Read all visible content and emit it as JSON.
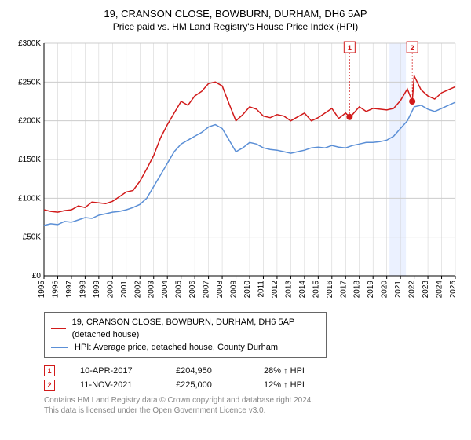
{
  "title": "19, CRANSON CLOSE, BOWBURN, DURHAM, DH6 5AP",
  "subtitle": "Price paid vs. HM Land Registry's House Price Index (HPI)",
  "chart": {
    "type": "line",
    "background_color": "#ffffff",
    "grid_color": "#cccccc",
    "axis_color": "#000000",
    "title_fontsize": 13,
    "subtitle_fontsize": 12,
    "tick_fontsize": 10,
    "y": {
      "min": 0,
      "max": 300000,
      "ticks": [
        0,
        50000,
        100000,
        150000,
        200000,
        250000,
        300000
      ],
      "tick_labels": [
        "£0",
        "£50K",
        "£100K",
        "£150K",
        "£200K",
        "£250K",
        "£300K"
      ]
    },
    "x": {
      "min": 1995,
      "max": 2025,
      "ticks": [
        1995,
        1996,
        1997,
        1998,
        1999,
        2000,
        2001,
        2002,
        2003,
        2004,
        2005,
        2006,
        2007,
        2008,
        2009,
        2010,
        2011,
        2012,
        2013,
        2014,
        2015,
        2016,
        2017,
        2018,
        2019,
        2020,
        2021,
        2022,
        2023,
        2024,
        2025
      ]
    },
    "highlight_band": {
      "from_year": 2020.2,
      "to_year": 2021.4,
      "fill": "#e6eeff",
      "opacity": 0.8
    },
    "series": [
      {
        "name": "property",
        "label": "19, CRANSON CLOSE, BOWBURN, DURHAM, DH6 5AP (detached house)",
        "color": "#d11a1a",
        "line_width": 1.5,
        "points": [
          [
            1995,
            85000
          ],
          [
            1995.5,
            83000
          ],
          [
            1996,
            82000
          ],
          [
            1996.5,
            84000
          ],
          [
            1997,
            85000
          ],
          [
            1997.5,
            90000
          ],
          [
            1998,
            88000
          ],
          [
            1998.5,
            95000
          ],
          [
            1999,
            94000
          ],
          [
            1999.5,
            93000
          ],
          [
            2000,
            96000
          ],
          [
            2000.5,
            102000
          ],
          [
            2001,
            108000
          ],
          [
            2001.5,
            110000
          ],
          [
            2002,
            122000
          ],
          [
            2002.5,
            138000
          ],
          [
            2003,
            155000
          ],
          [
            2003.5,
            178000
          ],
          [
            2004,
            195000
          ],
          [
            2004.5,
            210000
          ],
          [
            2005,
            225000
          ],
          [
            2005.5,
            220000
          ],
          [
            2006,
            232000
          ],
          [
            2006.5,
            238000
          ],
          [
            2007,
            248000
          ],
          [
            2007.5,
            250000
          ],
          [
            2008,
            245000
          ],
          [
            2008.5,
            222000
          ],
          [
            2009,
            200000
          ],
          [
            2009.5,
            208000
          ],
          [
            2010,
            218000
          ],
          [
            2010.5,
            215000
          ],
          [
            2011,
            206000
          ],
          [
            2011.5,
            204000
          ],
          [
            2012,
            208000
          ],
          [
            2012.5,
            206000
          ],
          [
            2013,
            200000
          ],
          [
            2013.5,
            205000
          ],
          [
            2014,
            210000
          ],
          [
            2014.5,
            200000
          ],
          [
            2015,
            204000
          ],
          [
            2015.5,
            210000
          ],
          [
            2016,
            216000
          ],
          [
            2016.5,
            203000
          ],
          [
            2017,
            210000
          ],
          [
            2017.29,
            204950
          ],
          [
            2017.5,
            208000
          ],
          [
            2018,
            218000
          ],
          [
            2018.5,
            212000
          ],
          [
            2019,
            216000
          ],
          [
            2019.5,
            215000
          ],
          [
            2020,
            214000
          ],
          [
            2020.5,
            216000
          ],
          [
            2021,
            226000
          ],
          [
            2021.5,
            241000
          ],
          [
            2021.86,
            225000
          ],
          [
            2022,
            258000
          ],
          [
            2022.5,
            240000
          ],
          [
            2023,
            232000
          ],
          [
            2023.5,
            228000
          ],
          [
            2024,
            236000
          ],
          [
            2024.5,
            240000
          ],
          [
            2025,
            244000
          ]
        ]
      },
      {
        "name": "hpi",
        "label": "HPI: Average price, detached house, County Durham",
        "color": "#5b8fd6",
        "line_width": 1.5,
        "points": [
          [
            1995,
            65000
          ],
          [
            1995.5,
            67000
          ],
          [
            1996,
            66000
          ],
          [
            1996.5,
            70000
          ],
          [
            1997,
            69000
          ],
          [
            1997.5,
            72000
          ],
          [
            1998,
            75000
          ],
          [
            1998.5,
            74000
          ],
          [
            1999,
            78000
          ],
          [
            1999.5,
            80000
          ],
          [
            2000,
            82000
          ],
          [
            2000.5,
            83000
          ],
          [
            2001,
            85000
          ],
          [
            2001.5,
            88000
          ],
          [
            2002,
            92000
          ],
          [
            2002.5,
            100000
          ],
          [
            2003,
            115000
          ],
          [
            2003.5,
            130000
          ],
          [
            2004,
            145000
          ],
          [
            2004.5,
            160000
          ],
          [
            2005,
            170000
          ],
          [
            2005.5,
            175000
          ],
          [
            2006,
            180000
          ],
          [
            2006.5,
            185000
          ],
          [
            2007,
            192000
          ],
          [
            2007.5,
            195000
          ],
          [
            2008,
            190000
          ],
          [
            2008.5,
            175000
          ],
          [
            2009,
            160000
          ],
          [
            2009.5,
            165000
          ],
          [
            2010,
            172000
          ],
          [
            2010.5,
            170000
          ],
          [
            2011,
            165000
          ],
          [
            2011.5,
            163000
          ],
          [
            2012,
            162000
          ],
          [
            2012.5,
            160000
          ],
          [
            2013,
            158000
          ],
          [
            2013.5,
            160000
          ],
          [
            2014,
            162000
          ],
          [
            2014.5,
            165000
          ],
          [
            2015,
            166000
          ],
          [
            2015.5,
            165000
          ],
          [
            2016,
            168000
          ],
          [
            2016.5,
            166000
          ],
          [
            2017,
            165000
          ],
          [
            2017.5,
            168000
          ],
          [
            2018,
            170000
          ],
          [
            2018.5,
            172000
          ],
          [
            2019,
            172000
          ],
          [
            2019.5,
            173000
          ],
          [
            2020,
            175000
          ],
          [
            2020.5,
            180000
          ],
          [
            2021,
            190000
          ],
          [
            2021.5,
            200000
          ],
          [
            2022,
            218000
          ],
          [
            2022.5,
            220000
          ],
          [
            2023,
            215000
          ],
          [
            2023.5,
            212000
          ],
          [
            2024,
            216000
          ],
          [
            2024.5,
            220000
          ],
          [
            2025,
            224000
          ]
        ]
      }
    ],
    "sale_markers": [
      {
        "n": "1",
        "year": 2017.29,
        "value": 204950,
        "color": "#d11a1a"
      },
      {
        "n": "2",
        "year": 2021.86,
        "value": 225000,
        "color": "#d11a1a"
      }
    ]
  },
  "legend": {
    "series1": "19, CRANSON CLOSE, BOWBURN, DURHAM, DH6 5AP (detached house)",
    "series2": "HPI: Average price, detached house, County Durham"
  },
  "sales": [
    {
      "n": "1",
      "date": "10-APR-2017",
      "price": "£204,950",
      "delta": "28% ↑ HPI",
      "color": "#d11a1a"
    },
    {
      "n": "2",
      "date": "11-NOV-2021",
      "price": "£225,000",
      "delta": "12% ↑ HPI",
      "color": "#d11a1a"
    }
  ],
  "footer": {
    "line1": "Contains HM Land Registry data © Crown copyright and database right 2024.",
    "line2": "This data is licensed under the Open Government Licence v3.0."
  }
}
